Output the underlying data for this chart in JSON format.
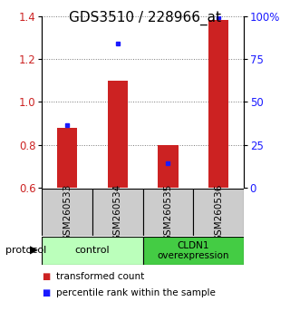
{
  "title": "GDS3510 / 228966_at",
  "samples": [
    "GSM260533",
    "GSM260534",
    "GSM260535",
    "GSM260536"
  ],
  "red_values": [
    0.88,
    1.1,
    0.8,
    1.38
  ],
  "blue_values": [
    0.893,
    1.27,
    0.715,
    1.395
  ],
  "ylim": [
    0.6,
    1.4
  ],
  "yticks_left": [
    0.6,
    0.8,
    1.0,
    1.2,
    1.4
  ],
  "yticks_right_vals": [
    0,
    25,
    50,
    75,
    100
  ],
  "yticks_right_labels": [
    "0",
    "25",
    "50",
    "75",
    "100%"
  ],
  "bar_bottom": 0.6,
  "red_color": "#cc2222",
  "blue_color": "#1a1aff",
  "bar_width": 0.4,
  "control_label": "control",
  "cldn1_label": "CLDN1\noverexpression",
  "control_color": "#bbffbb",
  "cldn1_color": "#44cc44",
  "sample_box_color": "#cccccc",
  "protocol_label": "protocol",
  "legend_red": "transformed count",
  "legend_blue": "percentile rank within the sample",
  "title_fontsize": 11,
  "tick_fontsize": 8.5,
  "legend_fontsize": 7.5,
  "background_color": "#ffffff",
  "grid_color": "#777777"
}
